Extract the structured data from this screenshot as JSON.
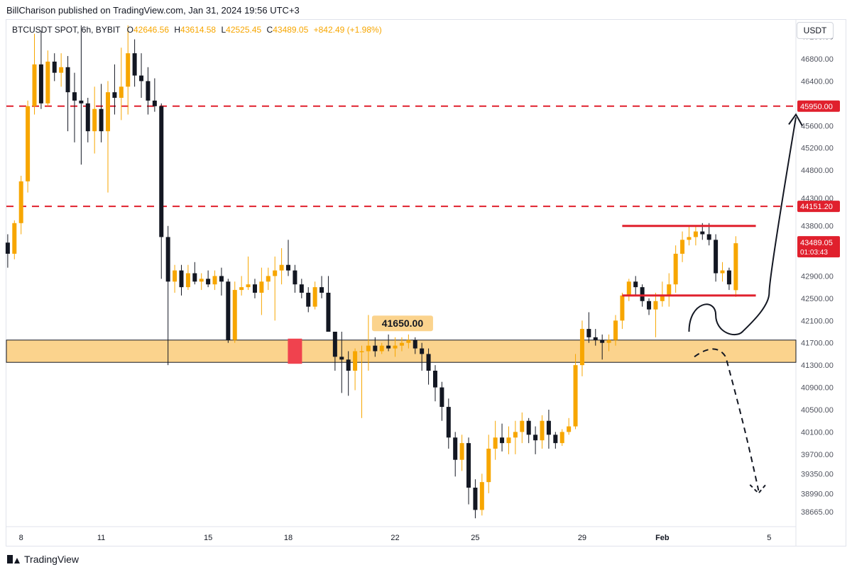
{
  "publisher": "BillCharison published on TradingView.com, Jan 31, 2024 19:56 UTC+3",
  "currency_button": "USDT",
  "footer": {
    "brand": "TradingView",
    "logo_icon": "tradingview-logo-icon"
  },
  "colors": {
    "up": "#f7a600",
    "down": "#131722",
    "level": "#e0202d",
    "zone_fill": "#fbd38d",
    "zone_border": "#131722",
    "marker": "#f0424e",
    "axis_text": "#131722"
  },
  "legend": {
    "symbol": "BTCUSDT SPOT, 6h, BYBIT",
    "open_label": "O",
    "open": "42646.56",
    "high_label": "H",
    "high": "43614.58",
    "low_label": "L",
    "low": "42525.45",
    "close_label": "C",
    "close": "43489.05",
    "change": "+842.49 (+1.98%)"
  },
  "chart_data": {
    "type": "candlestick",
    "symbol": "BTCUSDT SPOT",
    "interval": "6h",
    "exchange": "BYBIT",
    "y_range": [
      38400,
      47500
    ],
    "y_ticks": [
      "47200.00",
      "46800.00",
      "46400.00",
      "46000.00",
      "45600.00",
      "45200.00",
      "44800.00",
      "44300.00",
      "43800.00",
      "42900.00",
      "42500.00",
      "42100.00",
      "41700.00",
      "41300.00",
      "40900.00",
      "40500.00",
      "40100.00",
      "39700.00",
      "39350.00",
      "38990.00",
      "38665.00"
    ],
    "x_range": [
      7.45,
      6.0
    ],
    "x_ticks": [
      {
        "label": "8",
        "day": 8
      },
      {
        "label": "11",
        "day": 11
      },
      {
        "label": "15",
        "day": 15
      },
      {
        "label": "18",
        "day": 18
      },
      {
        "label": "22",
        "day": 22
      },
      {
        "label": "25",
        "day": 25
      },
      {
        "label": "29",
        "day": 29
      },
      {
        "label": "Feb",
        "day": 32
      },
      {
        "label": "5",
        "day": 36
      }
    ],
    "candles": [
      [
        7.5,
        43500,
        43650,
        43050,
        43300
      ],
      [
        7.75,
        43300,
        43900,
        43200,
        43850
      ],
      [
        8.0,
        43850,
        44700,
        43650,
        44600
      ],
      [
        8.25,
        44600,
        46050,
        44400,
        45950
      ],
      [
        8.5,
        45950,
        47250,
        45800,
        46700
      ],
      [
        8.75,
        46700,
        47300,
        45900,
        46000
      ],
      [
        9.0,
        46000,
        46950,
        45950,
        46750
      ],
      [
        9.25,
        46750,
        46900,
        46400,
        46550
      ],
      [
        9.5,
        46550,
        46900,
        46300,
        46650
      ],
      [
        9.75,
        46650,
        46850,
        45500,
        46200
      ],
      [
        10.0,
        46200,
        46550,
        45300,
        46050
      ],
      [
        10.25,
        46050,
        47400,
        44900,
        46000
      ],
      [
        10.5,
        46000,
        46100,
        45300,
        45500
      ],
      [
        10.75,
        45500,
        46300,
        45100,
        45900
      ],
      [
        11.0,
        45900,
        46350,
        45300,
        45500
      ],
      [
        11.25,
        45500,
        46400,
        44400,
        46200
      ],
      [
        11.5,
        46200,
        46700,
        45800,
        46100
      ],
      [
        11.75,
        46100,
        47000,
        45700,
        46300
      ],
      [
        12.0,
        46300,
        47400,
        45800,
        46900
      ],
      [
        12.25,
        46900,
        47150,
        46300,
        46500
      ],
      [
        12.5,
        46500,
        46900,
        46100,
        46400
      ],
      [
        12.75,
        46400,
        46650,
        45800,
        46050
      ],
      [
        13.0,
        46050,
        46450,
        45850,
        45950
      ],
      [
        13.25,
        45950,
        46000,
        42850,
        43600
      ],
      [
        13.5,
        43600,
        43800,
        41300,
        42800
      ],
      [
        13.75,
        42800,
        43100,
        42600,
        43000
      ],
      [
        14.0,
        43000,
        43100,
        42550,
        42700
      ],
      [
        14.25,
        42700,
        43100,
        42650,
        42950
      ],
      [
        14.5,
        42950,
        43150,
        42750,
        42800
      ],
      [
        14.75,
        42800,
        42950,
        42650,
        42850
      ],
      [
        15.0,
        42850,
        43000,
        42700,
        42750
      ],
      [
        15.25,
        42750,
        43000,
        42650,
        42900
      ],
      [
        15.5,
        42900,
        43050,
        42550,
        42800
      ],
      [
        15.75,
        42800,
        42850,
        41700,
        41750
      ],
      [
        16.0,
        41750,
        42800,
        41700,
        42650
      ],
      [
        16.25,
        42650,
        42900,
        42550,
        42700
      ],
      [
        16.5,
        42700,
        43250,
        42650,
        42750
      ],
      [
        16.75,
        42750,
        42850,
        42500,
        42600
      ],
      [
        17.0,
        42600,
        43050,
        42200,
        42800
      ],
      [
        17.25,
        42800,
        43050,
        42650,
        42900
      ],
      [
        17.5,
        42900,
        43250,
        42100,
        43000
      ],
      [
        17.75,
        43000,
        43400,
        42750,
        43100
      ],
      [
        18.0,
        43100,
        43550,
        42900,
        43000
      ],
      [
        18.25,
        43000,
        43100,
        42600,
        42750
      ],
      [
        18.5,
        42750,
        42850,
        42500,
        42600
      ],
      [
        18.75,
        42600,
        42700,
        42250,
        42350
      ],
      [
        19.0,
        42350,
        42800,
        42300,
        42700
      ],
      [
        19.25,
        42700,
        42900,
        42500,
        42600
      ],
      [
        19.5,
        42600,
        42900,
        41950,
        41900
      ],
      [
        19.75,
        41900,
        41900,
        41200,
        41450
      ],
      [
        20.0,
        41450,
        41900,
        40800,
        41400
      ],
      [
        20.25,
        41400,
        41550,
        40750,
        41200
      ],
      [
        20.5,
        41200,
        41600,
        40850,
        41550
      ],
      [
        20.75,
        41550,
        41650,
        40350,
        41550
      ],
      [
        21.0,
        41550,
        42200,
        41200,
        41650
      ],
      [
        21.25,
        41650,
        41800,
        41450,
        41550
      ],
      [
        21.5,
        41550,
        41700,
        41500,
        41650
      ],
      [
        21.75,
        41650,
        41850,
        41550,
        41600
      ],
      [
        22.0,
        41600,
        41800,
        41450,
        41650
      ],
      [
        22.25,
        41650,
        41800,
        41550,
        41700
      ],
      [
        22.5,
        41700,
        41850,
        41600,
        41750
      ],
      [
        22.75,
        41750,
        41800,
        41500,
        41600
      ],
      [
        23.0,
        41600,
        41700,
        41200,
        41500
      ],
      [
        23.25,
        41500,
        41600,
        40950,
        41200
      ],
      [
        23.5,
        41200,
        41300,
        40650,
        40900
      ],
      [
        23.75,
        40900,
        41000,
        40300,
        40550
      ],
      [
        24.0,
        40550,
        40700,
        39800,
        40000
      ],
      [
        24.25,
        40000,
        40100,
        39300,
        39600
      ],
      [
        24.5,
        39600,
        40050,
        39400,
        39900
      ],
      [
        24.75,
        39900,
        40000,
        38800,
        39100
      ],
      [
        25.0,
        39100,
        39250,
        38550,
        38700
      ],
      [
        25.25,
        38700,
        39350,
        38600,
        39200
      ],
      [
        25.5,
        39200,
        40050,
        39000,
        39800
      ],
      [
        25.75,
        39800,
        40300,
        39600,
        40000
      ],
      [
        26.0,
        40000,
        40250,
        39750,
        39900
      ],
      [
        26.25,
        39900,
        40200,
        39700,
        40000
      ],
      [
        26.5,
        40000,
        40300,
        39700,
        40100
      ],
      [
        26.75,
        40100,
        40450,
        39900,
        40300
      ],
      [
        27.0,
        40300,
        40350,
        39900,
        40050
      ],
      [
        27.25,
        40050,
        40200,
        39700,
        39950
      ],
      [
        27.5,
        39950,
        40400,
        39800,
        40300
      ],
      [
        27.75,
        40300,
        40500,
        39800,
        40050
      ],
      [
        28.0,
        40050,
        40100,
        39800,
        39900
      ],
      [
        28.25,
        39900,
        40150,
        39850,
        40100
      ],
      [
        28.5,
        40100,
        40350,
        40050,
        40200
      ],
      [
        28.75,
        40200,
        41500,
        40150,
        41300
      ],
      [
        29.0,
        41300,
        42100,
        41100,
        41950
      ],
      [
        29.25,
        41950,
        42250,
        41700,
        41800
      ],
      [
        29.5,
        41800,
        41950,
        41650,
        41750
      ],
      [
        29.75,
        41750,
        41850,
        41400,
        41700
      ],
      [
        30.0,
        41700,
        41850,
        41550,
        41750
      ],
      [
        30.25,
        41750,
        42200,
        41650,
        42100
      ],
      [
        30.5,
        42100,
        42600,
        41950,
        42550
      ],
      [
        30.75,
        42550,
        42850,
        42450,
        42800
      ],
      [
        31.0,
        42800,
        42900,
        42550,
        42700
      ],
      [
        31.25,
        42700,
        42750,
        42350,
        42450
      ],
      [
        31.5,
        42450,
        42500,
        42200,
        42300
      ],
      [
        31.75,
        42300,
        42600,
        41800,
        42450
      ],
      [
        32.0,
        42450,
        42800,
        42350,
        42550
      ],
      [
        32.25,
        42550,
        42950,
        42350,
        42750
      ],
      [
        32.5,
        42750,
        43450,
        42600,
        43300
      ],
      [
        32.75,
        43300,
        43700,
        43150,
        43550
      ],
      [
        33.0,
        43550,
        43800,
        43450,
        43600
      ],
      [
        33.25,
        43600,
        43800,
        43450,
        43700
      ],
      [
        33.5,
        43700,
        43850,
        43550,
        43650
      ],
      [
        33.75,
        43650,
        43850,
        43450,
        43550
      ],
      [
        34.0,
        43550,
        43650,
        42800,
        42950
      ],
      [
        34.25,
        42950,
        43150,
        42800,
        43000
      ],
      [
        34.5,
        43000,
        43050,
        42650,
        42750
      ],
      [
        34.75,
        42646.56,
        43614.58,
        42525.45,
        43489.05
      ]
    ],
    "horizontal_levels": [
      {
        "price": 45950.0,
        "label": "45950.00",
        "style": "dashed"
      },
      {
        "price": 44151.2,
        "label": "44151.20",
        "style": "dashed"
      }
    ],
    "segments": [
      {
        "from": 30.5,
        "to": 35.5,
        "price": 43800,
        "color": "#e0202d"
      },
      {
        "from": 30.5,
        "to": 35.5,
        "price": 42550,
        "color": "#e0202d"
      }
    ],
    "zone": {
      "top": 41750,
      "bottom": 41350
    },
    "zone_marker": {
      "day": 18.25
    },
    "annotations": [
      {
        "label": "41650.00",
        "day": 22.25,
        "price": 42050
      }
    ],
    "last_price": {
      "label": "43489.05",
      "countdown": "01:03:43",
      "price": 43489.05
    },
    "projection_up": [
      [
        33.0,
        41900
      ],
      [
        34.0,
        42200
      ],
      [
        35.0,
        41900
      ],
      [
        36.0,
        42600
      ],
      [
        37.0,
        45750
      ]
    ],
    "projection_down": [
      [
        33.2,
        41450
      ],
      [
        34.0,
        41500
      ],
      [
        35.0,
        40300
      ],
      [
        35.6,
        39050
      ]
    ]
  }
}
